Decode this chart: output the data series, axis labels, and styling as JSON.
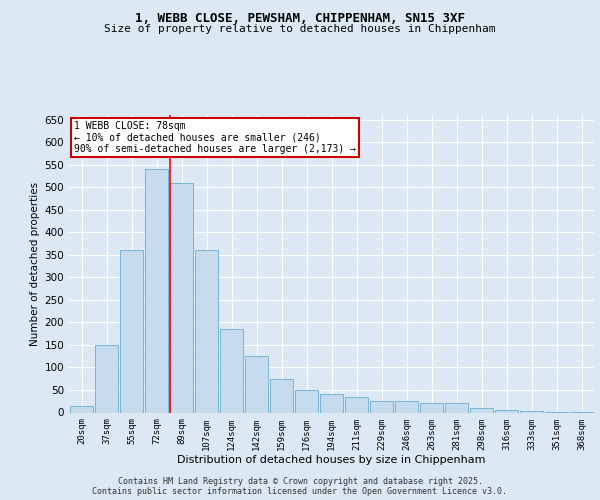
{
  "title_line1": "1, WEBB CLOSE, PEWSHAM, CHIPPENHAM, SN15 3XF",
  "title_line2": "Size of property relative to detached houses in Chippenham",
  "xlabel": "Distribution of detached houses by size in Chippenham",
  "ylabel": "Number of detached properties",
  "categories": [
    "20sqm",
    "37sqm",
    "55sqm",
    "72sqm",
    "89sqm",
    "107sqm",
    "124sqm",
    "142sqm",
    "159sqm",
    "176sqm",
    "194sqm",
    "211sqm",
    "229sqm",
    "246sqm",
    "263sqm",
    "281sqm",
    "298sqm",
    "316sqm",
    "333sqm",
    "351sqm",
    "368sqm"
  ],
  "values": [
    15,
    150,
    360,
    540,
    510,
    360,
    185,
    125,
    75,
    50,
    40,
    35,
    25,
    25,
    20,
    20,
    10,
    5,
    3,
    2,
    1
  ],
  "bar_color": "#c6dcee",
  "bar_edge_color": "#7ab4d4",
  "red_line_x": 3.55,
  "annotation_text": "1 WEBB CLOSE: 78sqm\n← 10% of detached houses are smaller (246)\n90% of semi-detached houses are larger (2,173) →",
  "annotation_box_color": "#ffffff",
  "annotation_box_edge": "#cc0000",
  "footer_line1": "Contains HM Land Registry data © Crown copyright and database right 2025.",
  "footer_line2": "Contains public sector information licensed under the Open Government Licence v3.0.",
  "bg_color": "#dce9f5",
  "plot_bg_color": "#dce9f5",
  "grid_color": "#ffffff",
  "ylim": [
    0,
    660
  ],
  "yticks": [
    0,
    50,
    100,
    150,
    200,
    250,
    300,
    350,
    400,
    450,
    500,
    550,
    600,
    650
  ]
}
